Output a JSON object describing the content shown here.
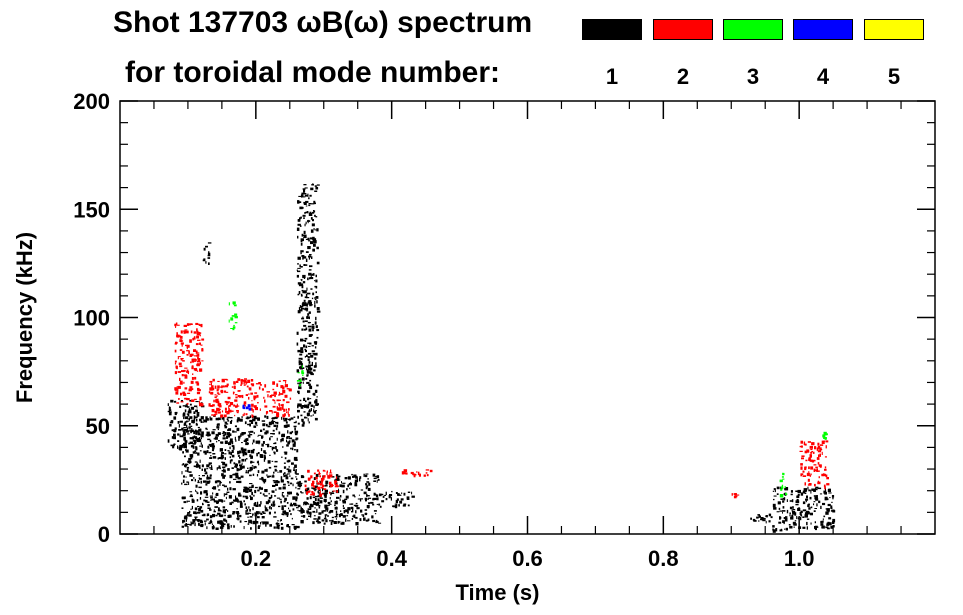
{
  "header": {
    "title_line1": "Shot 137703 ωB(ω) spectrum",
    "title_line2": "for toroidal mode number:"
  },
  "legend": {
    "items": [
      {
        "label": "1",
        "color": "#000000"
      },
      {
        "label": "2",
        "color": "#ff0000"
      },
      {
        "label": "3",
        "color": "#00ff00"
      },
      {
        "label": "4",
        "color": "#0000ff"
      },
      {
        "label": "5",
        "color": "#ffff00"
      }
    ]
  },
  "chart_data": {
    "type": "scatter",
    "title": "Shot 137703 ωB(ω) spectrum for toroidal mode number",
    "xlabel": "Time (s)",
    "ylabel": "Frequency (kHz)",
    "xlim": [
      0.0,
      1.2
    ],
    "ylim": [
      0,
      200
    ],
    "xticks": [
      0.2,
      0.4,
      0.6,
      0.8,
      1.0
    ],
    "xtick_labels": [
      "0.2",
      "0.4",
      "0.6",
      "0.8",
      "1.0"
    ],
    "yticks": [
      0,
      50,
      100,
      150,
      200
    ],
    "ytick_labels": [
      "0",
      "50",
      "100",
      "150",
      "200"
    ],
    "series": [
      {
        "name": "n=1",
        "color": "#000000",
        "clusters": [
          {
            "t": [
              0.07,
              0.12
            ],
            "f": [
              40,
              62
            ]
          },
          {
            "t": [
              0.09,
              0.26
            ],
            "f": [
              3,
              55
            ]
          },
          {
            "t": [
              0.26,
              0.29
            ],
            "f": [
              50,
              162
            ]
          },
          {
            "t": [
              0.26,
              0.38
            ],
            "f": [
              5,
              28
            ]
          },
          {
            "t": [
              0.37,
              0.43
            ],
            "f": [
              13,
              20
            ]
          },
          {
            "t": [
              0.12,
              0.13
            ],
            "f": [
              125,
              135
            ]
          },
          {
            "t": [
              0.92,
              0.96
            ],
            "f": [
              6,
              10
            ]
          },
          {
            "t": [
              0.96,
              1.05
            ],
            "f": [
              2,
              22
            ]
          }
        ]
      },
      {
        "name": "n=2",
        "color": "#ff0000",
        "clusters": [
          {
            "t": [
              0.08,
              0.12
            ],
            "f": [
              60,
              98
            ]
          },
          {
            "t": [
              0.13,
              0.25
            ],
            "f": [
              55,
              72
            ]
          },
          {
            "t": [
              0.27,
              0.32
            ],
            "f": [
              18,
              30
            ]
          },
          {
            "t": [
              0.41,
              0.46
            ],
            "f": [
              27,
              30
            ]
          },
          {
            "t": [
              0.9,
              0.91
            ],
            "f": [
              17,
              19
            ]
          },
          {
            "t": [
              1.0,
              1.04
            ],
            "f": [
              22,
              44
            ]
          }
        ]
      },
      {
        "name": "n=3",
        "color": "#00ff00",
        "clusters": [
          {
            "t": [
              0.16,
              0.17
            ],
            "f": [
              95,
              108
            ]
          },
          {
            "t": [
              0.26,
              0.27
            ],
            "f": [
              68,
              78
            ]
          },
          {
            "t": [
              0.97,
              0.98
            ],
            "f": [
              18,
              30
            ]
          },
          {
            "t": [
              1.03,
              1.04
            ],
            "f": [
              44,
              48
            ]
          }
        ]
      },
      {
        "name": "n=4",
        "color": "#0000ff",
        "clusters": [
          {
            "t": [
              0.18,
              0.19
            ],
            "f": [
              58,
              60
            ]
          }
        ]
      },
      {
        "name": "n=5",
        "color": "#ffff00",
        "clusters": []
      }
    ]
  }
}
